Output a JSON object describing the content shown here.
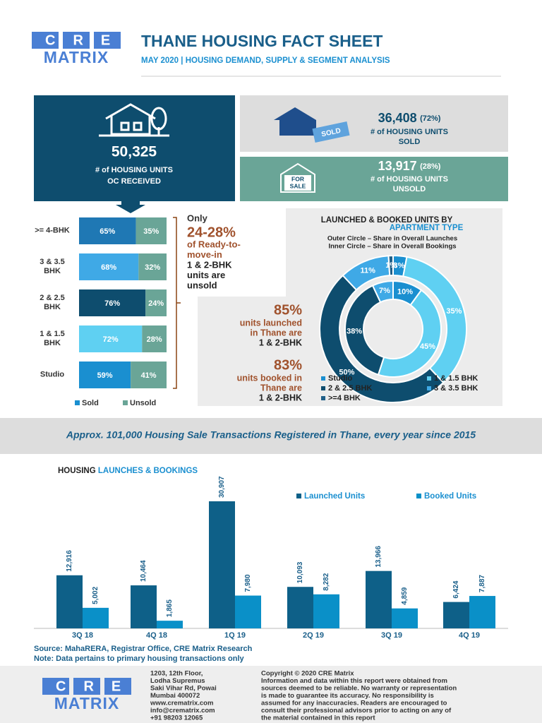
{
  "header": {
    "logo": {
      "top": "CRE",
      "bottom": "MATRIX"
    },
    "title": "THANE HOUSING FACT SHEET",
    "subtitle": {
      "date": "MAY 2020",
      "separator": "|",
      "text": "HOUSING DEMAND, SUPPLY & SEGMENT ANALYSIS"
    }
  },
  "oc": {
    "value": "50,325",
    "lines": [
      "# of HOUSING UNITS",
      "OC RECEIVED"
    ]
  },
  "sold": {
    "value": "36,408",
    "share": "(72%)",
    "lines": [
      "# of HOUSING UNITS",
      "SOLD"
    ],
    "tag": "SOLD"
  },
  "unsold": {
    "value": "13,917",
    "share": "(28%)",
    "lines": [
      "# of HOUSING UNITS",
      "UNSOLD"
    ],
    "tag_lines": [
      "FOR",
      "SALE"
    ]
  },
  "chart_data": [
    {
      "type": "stacked-bar",
      "orientation": "horizontal",
      "categories": [
        ">= 4-BHK",
        "3 & 3.5 BHK",
        "2 & 2.5 BHK",
        "1 & 1.5 BHK",
        "Studio"
      ],
      "series": [
        {
          "name": "Sold",
          "color": "#1a8fd0",
          "colors": [
            "#1f78b4",
            "#3fa9e6",
            "#0e4d6e",
            "#5fd0f2",
            "#1a8fd0"
          ],
          "values": [
            65,
            68,
            76,
            72,
            59
          ],
          "value_labels": [
            "65%",
            "68%",
            "76%",
            "72%",
            "59%"
          ]
        },
        {
          "name": "Unsold",
          "color": "#6aa597",
          "values": [
            35,
            32,
            24,
            28,
            41
          ],
          "value_labels": [
            "35%",
            "32%",
            "24%",
            "28%",
            "41%"
          ]
        }
      ],
      "annotation": {
        "lead": "Only",
        "highlight": "24-28%",
        "lines": [
          "of Ready-to-",
          "move-in",
          "1 & 2-BHK",
          "units are",
          "unsold"
        ]
      }
    },
    {
      "type": "donut",
      "title": "LAUNCHED & BOOKED UNITS BY",
      "title_highlight": "APARTMENT TYPE",
      "subtitle_lines": [
        "Outer Circle – Share in Overall Launches",
        "Inner Circle – Share in Overall Bookings"
      ],
      "categories": [
        "Studio",
        "1 & 1.5 BHK",
        "2 & 2.5 BHK",
        "3 & 3.5 BHK",
        ">=4 BHK"
      ],
      "colors": [
        "#1a8fd0",
        "#5fd0f2",
        "#0e4d6e",
        "#3fa9e6",
        "#1f5f88"
      ],
      "series": [
        {
          "ring": "outer",
          "values": [
            3,
            35,
            50,
            11,
            1
          ],
          "value_labels": [
            "3%",
            "35%",
            "50%",
            "11%",
            "1%"
          ]
        },
        {
          "ring": "inner",
          "values": [
            10,
            45,
            38,
            7,
            null
          ],
          "value_labels": [
            "10%",
            "45%",
            "38%",
            "7%",
            null
          ]
        }
      ],
      "annotations": [
        {
          "value": "85%",
          "lines": [
            "units launched",
            "in Thane are",
            "1 & 2-BHK"
          ]
        },
        {
          "value": "83%",
          "lines": [
            "units booked in",
            "Thane are",
            "1 & 2-BHK"
          ]
        }
      ]
    },
    {
      "type": "grouped-bar",
      "title": "HOUSING",
      "title_highlight": "LAUNCHES & BOOKINGS",
      "categories": [
        "3Q 18",
        "4Q 18",
        "1Q 19",
        "2Q 19",
        "3Q 19",
        "4Q 19"
      ],
      "series": [
        {
          "name": "Launched Units",
          "color": "#0e6088",
          "values": [
            12916,
            10464,
            30907,
            10093,
            13966,
            6424
          ],
          "value_labels": [
            "12,916",
            "10,464",
            "30,907",
            "10,093",
            "13,966",
            "6,424"
          ]
        },
        {
          "name": "Booked Units",
          "color": "#0a90c8",
          "values": [
            5002,
            1865,
            7980,
            8282,
            4859,
            7887
          ],
          "value_labels": [
            "5,002",
            "1,865",
            "7,980",
            "8,282",
            "4,859",
            "7,887"
          ]
        }
      ]
    }
  ],
  "banner": "Approx. 101,000 Housing Sale Transactions Registered in Thane, every year since 2015",
  "source": "Source: MahaRERA, Registrar Office, CRE Matrix Research",
  "note": "Note: Data pertains to primary housing transactions only",
  "footer": {
    "logo": {
      "top": "CRE",
      "bottom": "MATRIX"
    },
    "address": [
      "1203, 12th Floor,",
      "Lodha Supremus",
      "Saki Vihar Rd, Powai",
      "Mumbai 400072",
      "www.crematrix.com",
      "info@crematrix.com",
      "+91 98203 12065"
    ],
    "copyright": [
      "Copyright © 2020 CRE Matrix",
      "Information and data within this report were obtained from",
      "sources deemed to be reliable. No warranty or representation",
      "is made to guarantee its accuracy. No responsibility is",
      "assumed for any inaccuracies. Readers are encouraged to",
      "consult their professional advisors prior to acting on any of",
      "the material contained in this report"
    ]
  }
}
